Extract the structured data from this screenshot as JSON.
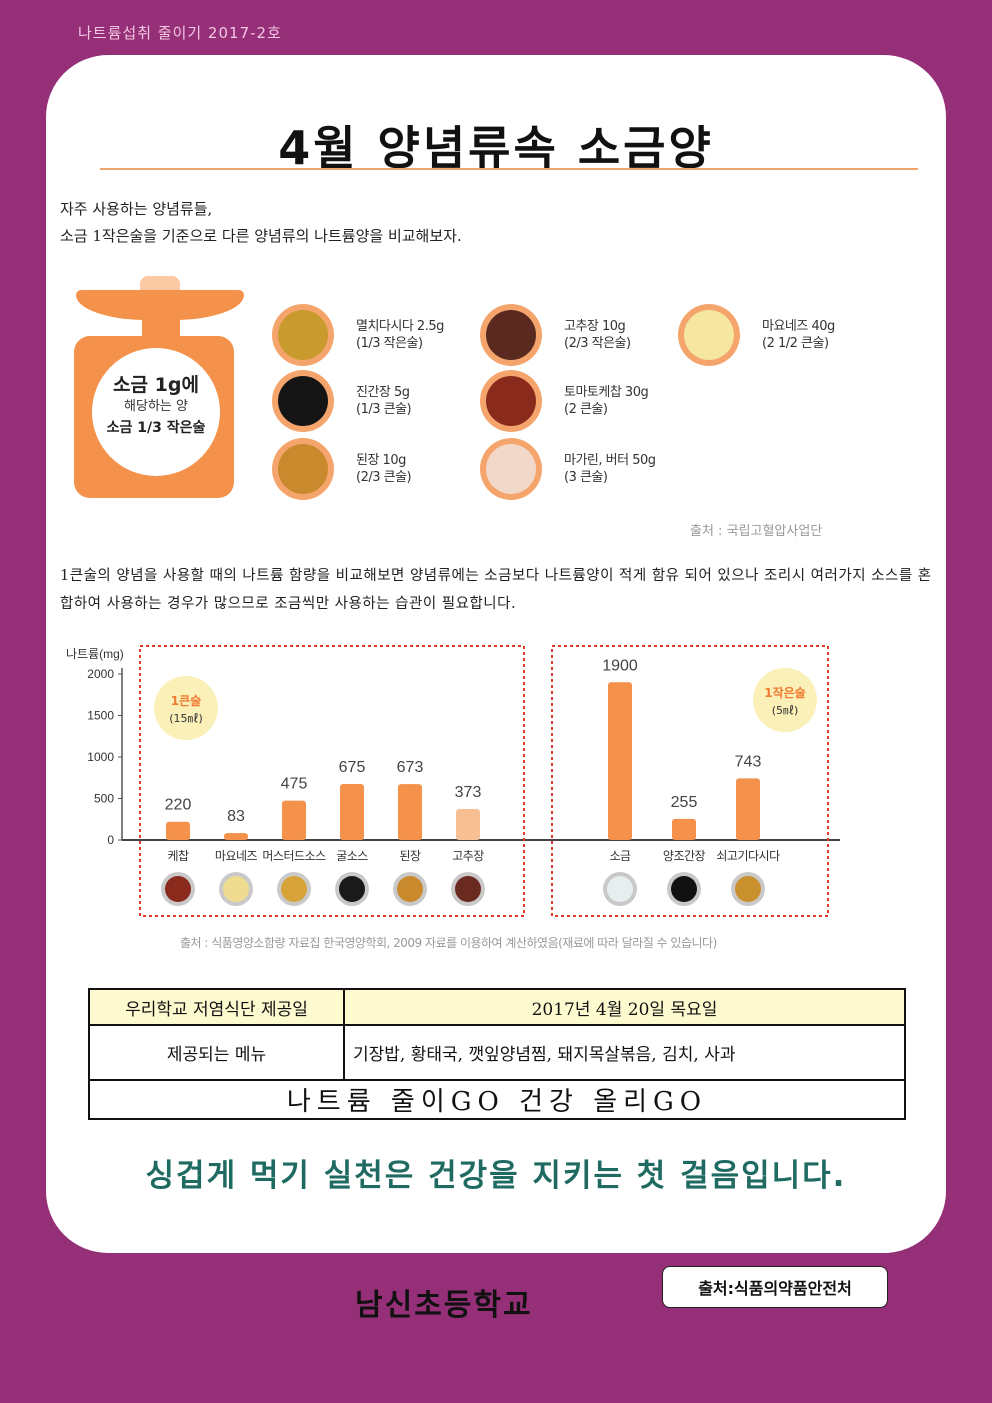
{
  "header_tag": "나트륨섭취 줄이기 2017-2호",
  "title": "4월 양념류속 소금양",
  "intro": {
    "line1": "자주 사용하는 양념류들,",
    "line2": "소금 1작은술을 기준으로 다른 양념류의 나트륨양을 비교해보자."
  },
  "scale": {
    "line1": "소금 1g에",
    "line2": "해당하는 양",
    "line3": "소금 1/3 작은술"
  },
  "condiments": [
    {
      "name": "멸치다시다 2.5g",
      "amount": "(1/3 작은술)",
      "color": "#c99a2e"
    },
    {
      "name": "진간장 5g",
      "amount": "(1/3 큰술)",
      "color": "#151515"
    },
    {
      "name": "된장 10g",
      "amount": "(2/3 큰술)",
      "color": "#c98a2e"
    },
    {
      "name": "고추장 10g",
      "amount": "(2/3 작은술)",
      "color": "#5a2a20"
    },
    {
      "name": "토마토케찹 30g",
      "amount": "(2 큰술)",
      "color": "#8a2a1c"
    },
    {
      "name": "마가린, 버터 50g",
      "amount": "(3 큰술)",
      "color": "#f2d8c8"
    },
    {
      "name": "마요네즈 40g",
      "amount": "(2 1/2 큰술)",
      "color": "#f5e6a0"
    }
  ],
  "source1": "출처 : 국립고혈압사업단",
  "paragraph": "1큰술의 양념을 사용할 때의 나트륨 함량을 비교해보면 양념류에는 소금보다 나트륨양이 적게 함유 되어 있으나 조리시 여러가지 소스를 혼합하여 사용하는 경우가 많으므로 조금씩만 사용하는 습관이 필요합니다.",
  "chart_data": {
    "type": "bar",
    "ylabel": "나트륨(mg)",
    "ylim": [
      0,
      2000
    ],
    "yticks": [
      0,
      500,
      1000,
      1500,
      2000
    ],
    "groups": [
      {
        "badge": [
          "1큰술",
          "(15㎖)"
        ],
        "categories": [
          "케찹",
          "마요네즈",
          "머스터드소스",
          "굴소스",
          "된장",
          "고추장"
        ],
        "values": [
          220,
          83,
          475,
          675,
          673,
          373
        ],
        "labels": [
          "220",
          "83",
          "475",
          "675",
          "673",
          "373"
        ],
        "bowl_colors": [
          "#8a2a1c",
          "#f0dc90",
          "#d8a43a",
          "#1a1a1a",
          "#c98a2e",
          "#6a2a20"
        ]
      },
      {
        "badge": [
          "1작은술",
          "(5㎖)"
        ],
        "categories": [
          "소금",
          "양조간장",
          "쇠고기다시다"
        ],
        "values": [
          1900,
          255,
          743
        ],
        "labels": [
          "1900",
          "255",
          "743"
        ],
        "bowl_colors": [
          "#e6eef0",
          "#111111",
          "#c9902e"
        ]
      }
    ],
    "bar_color": "#f4914a",
    "bar_color_light": "#f9bf94"
  },
  "source2": "출처 : 식품영양소함량 자료집 한국영양학회, 2009 자료를 이용하여 계산하였음(재료에 따라 달라질 수 있습니다)",
  "table": {
    "row1_label": "우리학교 저염식단 제공일",
    "row1_value": "2017년 4월 20일 목요일",
    "row2_label": "제공되는 메뉴",
    "row2_value": "기장밥, 황태국, 깻잎양념찜, 돼지목살볶음, 김치, 사과",
    "row3": "나트륨 줄이GO 건강 올리GO"
  },
  "slogan": "싱겁게 먹기 실천은 건강을 지키는 첫 걸음입니다.",
  "school": "남신초등학교",
  "source3": "출처:식품의약품안전처"
}
